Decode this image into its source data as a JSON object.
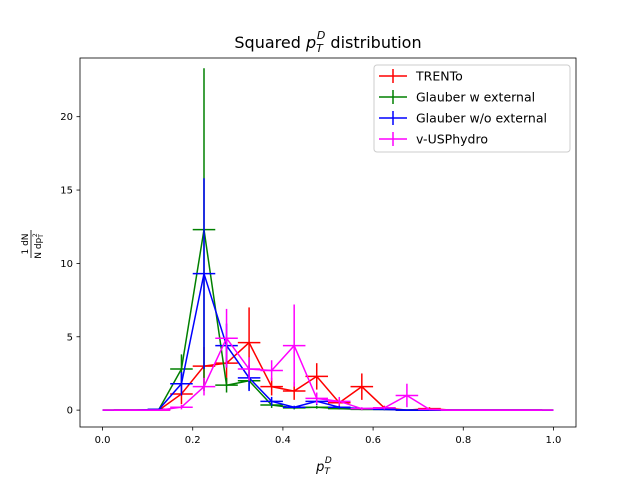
{
  "chart_data": {
    "type": "line",
    "title": "Squared p_T^D distribution",
    "title_parts": {
      "prefix": "Squared ",
      "var": "p",
      "sub": "T",
      "sup": "D",
      "suffix": " distribution"
    },
    "xlabel": "p_T^D",
    "xlabel_parts": {
      "var": "p",
      "sub": "T",
      "sup": "D"
    },
    "ylabel": "1 dN / N dp_T^2",
    "ylabel_parts": {
      "num": "1  dN",
      "den": "N dp",
      "den_sub": "T",
      "den_sup": "2"
    },
    "xlim": [
      -0.05,
      1.05
    ],
    "ylim": [
      -1.15,
      24.0
    ],
    "xticks": [
      0.0,
      0.2,
      0.4,
      0.6,
      0.8,
      1.0
    ],
    "xtick_labels": [
      "0.0",
      "0.2",
      "0.4",
      "0.6",
      "0.8",
      "1.0"
    ],
    "yticks": [
      0,
      5,
      10,
      15,
      20
    ],
    "ytick_labels": [
      "0",
      "5",
      "10",
      "15",
      "20"
    ],
    "grid": false,
    "legend_position": "top-right",
    "x": [
      0.025,
      0.075,
      0.125,
      0.175,
      0.225,
      0.275,
      0.325,
      0.375,
      0.425,
      0.475,
      0.525,
      0.575,
      0.625,
      0.675,
      0.725,
      0.775,
      0.825,
      0.875,
      0.925,
      0.975
    ],
    "x_halfwidth": 0.025,
    "series": [
      {
        "name": "TRENTo",
        "color": "#ff0000",
        "values": [
          0,
          0,
          0,
          1.1,
          3.0,
          3.2,
          4.6,
          1.6,
          1.3,
          2.3,
          0.5,
          1.6,
          0.15,
          0,
          0.1,
          0,
          0,
          0,
          0,
          0
        ],
        "errors": [
          0,
          0,
          0,
          0.7,
          1.3,
          1.4,
          2.4,
          0.6,
          0.6,
          0.9,
          0.3,
          0.9,
          0.15,
          0,
          0.1,
          0,
          0,
          0,
          0,
          0
        ]
      },
      {
        "name": "Glauber w external",
        "color": "#008000",
        "values": [
          0,
          0,
          0.05,
          2.8,
          12.3,
          1.7,
          2.0,
          0.35,
          0.15,
          0.2,
          0.1,
          0.05,
          0.05,
          0,
          0,
          0,
          0,
          0,
          0,
          0
        ],
        "errors": [
          0,
          0,
          0.05,
          1.0,
          11.0,
          0.5,
          0.6,
          0.2,
          0.1,
          0.1,
          0.05,
          0.05,
          0.05,
          0,
          0,
          0,
          0,
          0,
          0,
          0
        ]
      },
      {
        "name": "Glauber w/o external",
        "color": "#0000ff",
        "values": [
          0,
          0,
          0.05,
          1.8,
          9.3,
          4.4,
          2.2,
          0.6,
          0.2,
          0.6,
          0.2,
          0.1,
          0.05,
          0,
          0,
          0,
          0,
          0,
          0,
          0
        ],
        "errors": [
          0,
          0,
          0.05,
          0.8,
          6.5,
          1.5,
          0.9,
          0.3,
          0.1,
          0.25,
          0.1,
          0.05,
          0.05,
          0,
          0,
          0,
          0,
          0,
          0,
          0
        ]
      },
      {
        "name": "v-USPhydro",
        "color": "#ff00ff",
        "values": [
          0,
          0,
          0,
          0.2,
          1.6,
          4.9,
          2.8,
          2.7,
          4.4,
          0.8,
          0.6,
          0.1,
          0.15,
          1.0,
          0.05,
          0,
          0,
          0,
          0,
          0
        ],
        "errors": [
          0,
          0,
          0,
          0.15,
          0.6,
          2.0,
          0.8,
          0.7,
          2.8,
          0.4,
          0.3,
          0.1,
          0.1,
          0.8,
          0.05,
          0,
          0,
          0,
          0,
          0
        ]
      }
    ]
  }
}
